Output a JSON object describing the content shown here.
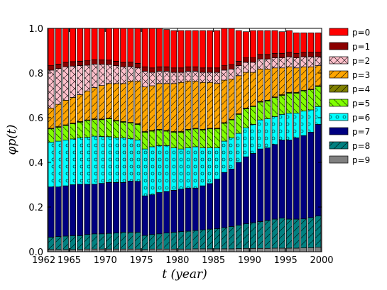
{
  "chart_data": {
    "type": "bar",
    "stacked": true,
    "title": "",
    "xlabel": "t (year)",
    "ylabel": "φp(t)",
    "xlim": [
      1962,
      2000
    ],
    "ylim": [
      0,
      1.0
    ],
    "x_ticks": [
      1962,
      1965,
      1970,
      1975,
      1980,
      1985,
      1990,
      1995,
      2000
    ],
    "x_tick_labels": [
      "1962",
      "1965",
      "1970",
      "1975",
      "1980",
      "1985",
      "1990",
      "1995",
      "2000"
    ],
    "y_ticks": [
      0.0,
      0.2,
      0.4,
      0.6,
      0.8,
      1.0
    ],
    "y_tick_labels": [
      "0.0",
      "0.2",
      "0.4",
      "0.6",
      "0.8",
      "1.0"
    ],
    "legend_position": "right",
    "grid": false,
    "x": [
      1962,
      1963,
      1964,
      1965,
      1966,
      1967,
      1968,
      1969,
      1970,
      1971,
      1972,
      1973,
      1974,
      1975,
      1976,
      1977,
      1978,
      1979,
      1980,
      1981,
      1982,
      1983,
      1984,
      1985,
      1986,
      1987,
      1988,
      1989,
      1990,
      1991,
      1992,
      1993,
      1994,
      1995,
      1996,
      1997,
      1998,
      1999
    ],
    "series": [
      {
        "name": "p=9",
        "color": "#808080",
        "hatch": "none",
        "values": [
          0.01,
          0.01,
          0.01,
          0.01,
          0.01,
          0.012,
          0.012,
          0.012,
          0.012,
          0.012,
          0.012,
          0.012,
          0.012,
          0.01,
          0.012,
          0.012,
          0.012,
          0.012,
          0.012,
          0.012,
          0.013,
          0.013,
          0.013,
          0.013,
          0.013,
          0.013,
          0.014,
          0.015,
          0.015,
          0.015,
          0.015,
          0.016,
          0.016,
          0.016,
          0.016,
          0.017,
          0.018,
          0.02
        ]
      },
      {
        "name": "p=8",
        "color": "#008080",
        "hatch": "diag",
        "values": [
          0.055,
          0.058,
          0.06,
          0.062,
          0.062,
          0.065,
          0.068,
          0.068,
          0.07,
          0.072,
          0.075,
          0.075,
          0.075,
          0.063,
          0.065,
          0.068,
          0.072,
          0.075,
          0.078,
          0.08,
          0.082,
          0.085,
          0.088,
          0.09,
          0.095,
          0.1,
          0.105,
          0.11,
          0.115,
          0.12,
          0.125,
          0.13,
          0.135,
          0.13,
          0.13,
          0.13,
          0.135,
          0.14
        ]
      },
      {
        "name": "p=7",
        "color": "#000080",
        "hatch": "none",
        "values": [
          0.225,
          0.222,
          0.225,
          0.228,
          0.23,
          0.225,
          0.222,
          0.226,
          0.228,
          0.226,
          0.223,
          0.229,
          0.228,
          0.177,
          0.178,
          0.185,
          0.186,
          0.188,
          0.19,
          0.193,
          0.19,
          0.197,
          0.204,
          0.222,
          0.247,
          0.257,
          0.281,
          0.3,
          0.31,
          0.325,
          0.325,
          0.334,
          0.349,
          0.354,
          0.364,
          0.373,
          0.382,
          0.41
        ]
      },
      {
        "name": "p=6",
        "color": "#00ffff",
        "hatch": "circle",
        "values": [
          0.2,
          0.205,
          0.205,
          0.205,
          0.208,
          0.21,
          0.215,
          0.21,
          0.205,
          0.2,
          0.2,
          0.19,
          0.185,
          0.21,
          0.215,
          0.21,
          0.205,
          0.19,
          0.18,
          0.18,
          0.185,
          0.17,
          0.16,
          0.14,
          0.14,
          0.14,
          0.13,
          0.13,
          0.13,
          0.13,
          0.13,
          0.125,
          0.115,
          0.12,
          0.11,
          0.11,
          0.1,
          0.08
        ]
      },
      {
        "name": "p=5",
        "color": "#7fff00",
        "hatch": "backdiag",
        "values": [
          0.06,
          0.062,
          0.065,
          0.068,
          0.07,
          0.075,
          0.075,
          0.075,
          0.08,
          0.075,
          0.07,
          0.07,
          0.07,
          0.075,
          0.07,
          0.07,
          0.065,
          0.07,
          0.075,
          0.08,
          0.08,
          0.08,
          0.085,
          0.085,
          0.08,
          0.08,
          0.085,
          0.085,
          0.08,
          0.08,
          0.08,
          0.085,
          0.085,
          0.09,
          0.09,
          0.09,
          0.09,
          0.09
        ]
      },
      {
        "name": "p=4",
        "color": "#808000",
        "hatch": "diag",
        "values": [
          0.003,
          0.003,
          0.003,
          0.003,
          0.003,
          0.003,
          0.003,
          0.003,
          0.003,
          0.003,
          0.003,
          0.003,
          0.003,
          0.003,
          0.003,
          0.003,
          0.003,
          0.003,
          0.003,
          0.003,
          0.003,
          0.003,
          0.003,
          0.003,
          0.003,
          0.003,
          0.003,
          0.003,
          0.003,
          0.003,
          0.003,
          0.003,
          0.003,
          0.003,
          0.003,
          0.003,
          0.003,
          0.003
        ]
      },
      {
        "name": "p=3",
        "color": "#ffa500",
        "hatch": "diag",
        "values": [
          0.09,
          0.1,
          0.11,
          0.115,
          0.12,
          0.13,
          0.14,
          0.15,
          0.155,
          0.165,
          0.17,
          0.185,
          0.19,
          0.2,
          0.2,
          0.205,
          0.21,
          0.215,
          0.22,
          0.215,
          0.21,
          0.21,
          0.205,
          0.2,
          0.19,
          0.18,
          0.17,
          0.16,
          0.15,
          0.145,
          0.14,
          0.13,
          0.12,
          0.115,
          0.11,
          0.105,
          0.1,
          0.09
        ]
      },
      {
        "name": "p=2",
        "color": "#ffc0cb",
        "hatch": "cross",
        "values": [
          0.17,
          0.16,
          0.15,
          0.14,
          0.13,
          0.115,
          0.105,
          0.095,
          0.085,
          0.08,
          0.075,
          0.065,
          0.06,
          0.07,
          0.06,
          0.055,
          0.055,
          0.05,
          0.045,
          0.045,
          0.045,
          0.045,
          0.045,
          0.05,
          0.045,
          0.045,
          0.045,
          0.045,
          0.045,
          0.045,
          0.045,
          0.045,
          0.045,
          0.045,
          0.045,
          0.045,
          0.045,
          0.04
        ]
      },
      {
        "name": "p=1",
        "color": "#8b0000",
        "hatch": "none",
        "values": [
          0.02,
          0.02,
          0.02,
          0.02,
          0.02,
          0.02,
          0.02,
          0.02,
          0.02,
          0.02,
          0.02,
          0.02,
          0.02,
          0.02,
          0.02,
          0.02,
          0.02,
          0.02,
          0.02,
          0.02,
          0.02,
          0.02,
          0.02,
          0.02,
          0.02,
          0.02,
          0.02,
          0.02,
          0.02,
          0.02,
          0.02,
          0.02,
          0.02,
          0.02,
          0.02,
          0.02,
          0.02,
          0.02
        ]
      },
      {
        "name": "p=0",
        "color": "#ff0000",
        "hatch": "none",
        "values": [
          0.167,
          0.16,
          0.152,
          0.149,
          0.147,
          0.145,
          0.14,
          0.141,
          0.142,
          0.147,
          0.152,
          0.151,
          0.157,
          0.172,
          0.177,
          0.172,
          0.167,
          0.167,
          0.167,
          0.162,
          0.162,
          0.167,
          0.167,
          0.167,
          0.167,
          0.162,
          0.137,
          0.117,
          0.122,
          0.107,
          0.107,
          0.102,
          0.097,
          0.097,
          0.092,
          0.087,
          0.087,
          0.087
        ]
      }
    ],
    "legend_order": [
      "p=0",
      "p=1",
      "p=2",
      "p=3",
      "p=4",
      "p=5",
      "p=6",
      "p=7",
      "p=8",
      "p=9"
    ]
  }
}
